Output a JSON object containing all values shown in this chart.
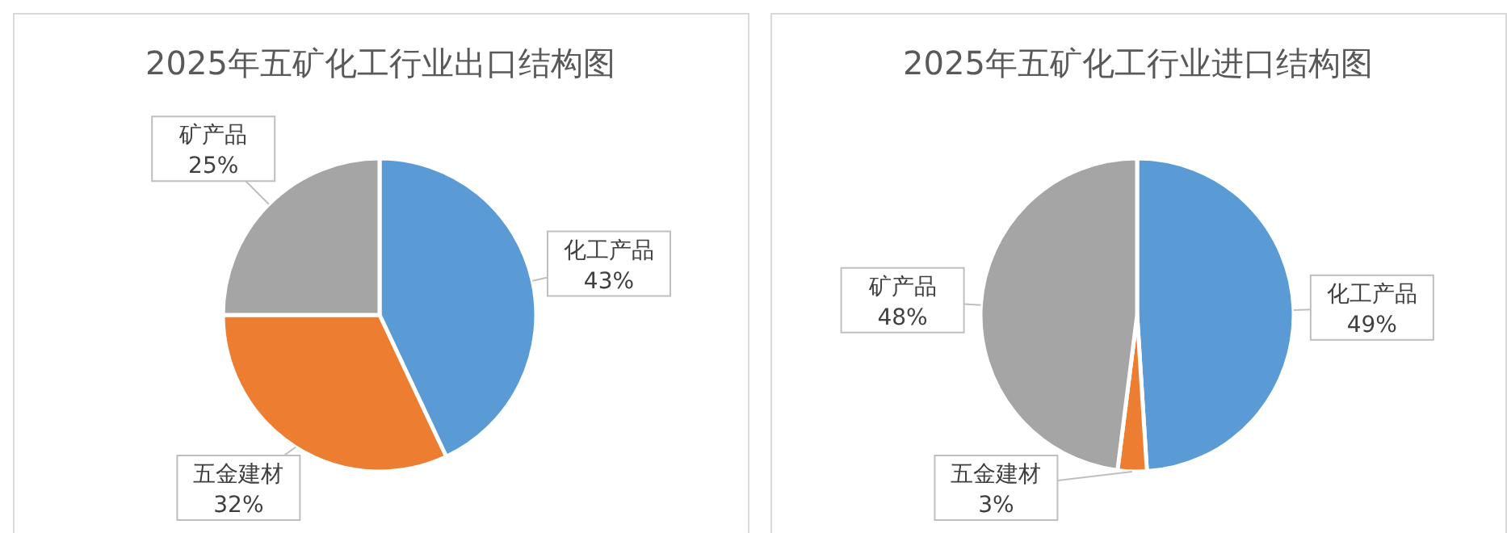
{
  "chart_data": [
    {
      "type": "pie",
      "title": "2025年五矿化工行业出口结构图",
      "categories": [
        "化工产品",
        "五金建材",
        "矿产品"
      ],
      "values": [
        43,
        32,
        25
      ],
      "colors": [
        "#5b9bd5",
        "#ed7d31",
        "#a5a5a5"
      ],
      "value_labels": [
        "43%",
        "32%",
        "25%"
      ]
    },
    {
      "type": "pie",
      "title": "2025年五矿化工行业进口结构图",
      "categories": [
        "化工产品",
        "五金建材",
        "矿产品"
      ],
      "values": [
        49,
        3,
        48
      ],
      "colors": [
        "#5b9bd5",
        "#ed7d31",
        "#a5a5a5"
      ],
      "value_labels": [
        "49%",
        "3%",
        "48%"
      ]
    }
  ]
}
